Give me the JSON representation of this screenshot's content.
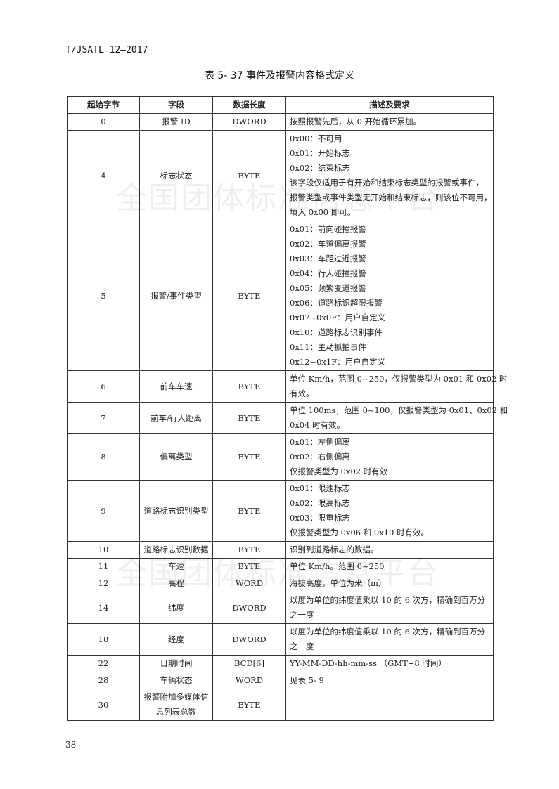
{
  "header": {
    "doc_id": "T/JSATL 12—2017"
  },
  "caption": "表 5- 37 事件及报警内容格式定义",
  "watermark": "全国团体标准信息平台",
  "table": {
    "columns": [
      "起始字节",
      "字段",
      "数据长度",
      "描述及要求"
    ],
    "rows": [
      {
        "start": "0",
        "field": [
          "报警 ID"
        ],
        "length": "DWORD",
        "desc": [
          "按照报警先后，从 0 开始循环累加。"
        ]
      },
      {
        "start": "4",
        "field": [
          "标志状态"
        ],
        "length": "BYTE",
        "desc": [
          "0x00：不可用",
          "0x01：开始标志",
          "0x02：结束标志",
          "该字段仅适用于有开始和结束标志类型的报警或事件，",
          "报警类型或事件类型无开始和结束标志，则该位不可用，",
          "填入 0x00 即可。"
        ]
      },
      {
        "start": "5",
        "field": [
          "报警/事件类型"
        ],
        "length": "BYTE",
        "desc": [
          "0x01：前向碰撞报警",
          "0x02：车道偏离报警",
          "0x03：车距过近报警",
          "0x04：行人碰撞报警",
          "0x05：频繁变道报警",
          "0x06：道路标识超限报警",
          "0x07~0x0F：用户自定义",
          "0x10：道路标志识别事件",
          "0x11：主动抓拍事件",
          "0x12~0x1F：用户自定义"
        ]
      },
      {
        "start": "6",
        "field": [
          "前车车速"
        ],
        "length": "BYTE",
        "desc": [
          "单位 Km/h，范围 0~250，仅报警类型为 0x01 和 0x02 时",
          "有效。"
        ]
      },
      {
        "start": "7",
        "field": [
          "前车/行人距离"
        ],
        "length": "BYTE",
        "desc": [
          "单位 100ms，范围 0~100，仅报警类型为 0x01、0x02 和",
          "0x04 时有效。"
        ]
      },
      {
        "start": "8",
        "field": [
          "偏离类型"
        ],
        "length": "BYTE",
        "desc": [
          "0x01：左侧偏离",
          "0x02：右侧偏离",
          "仅报警类型为 0x02 时有效"
        ]
      },
      {
        "start": "9",
        "field": [
          "道路标志识别类型"
        ],
        "length": "BYTE",
        "desc": [
          "0x01：限速标志",
          "0x02：限高标志",
          "0x03：限重标志",
          "仅报警类型为 0x06 和 0x10 时有效。"
        ]
      },
      {
        "start": "10",
        "field": [
          "道路标志识别数据"
        ],
        "length": "BYTE",
        "desc": [
          "识别到道路标志的数据。"
        ]
      },
      {
        "start": "11",
        "field": [
          "车速"
        ],
        "length": "BYTE",
        "desc": [
          "单位 Km/h。范围 0~250"
        ]
      },
      {
        "start": "12",
        "field": [
          "高程"
        ],
        "length": "WORD",
        "desc": [
          "海拔高度，单位为米（m）"
        ]
      },
      {
        "start": "14",
        "field": [
          "纬度"
        ],
        "length": "DWORD",
        "desc": [
          "以度为单位的纬度值乘以 10 的 6 次方，精确到百万分",
          "之一度"
        ]
      },
      {
        "start": "18",
        "field": [
          "经度"
        ],
        "length": "DWORD",
        "desc": [
          "以度为单位的纬度值乘以 10 的 6 次方，精确到百万分",
          "之一度"
        ]
      },
      {
        "start": "22",
        "field": [
          "日期时间"
        ],
        "length": "BCD[6]",
        "desc": [
          "YY-MM-DD-hh-mm-ss （GMT+8 时间）"
        ]
      },
      {
        "start": "28",
        "field": [
          "车辆状态"
        ],
        "length": "WORD",
        "desc": [
          "见表 5- 9"
        ]
      },
      {
        "start": "30",
        "field": [
          "报警附加多媒体信",
          "息列表总数"
        ],
        "length": "BYTE",
        "desc": []
      }
    ]
  },
  "footer": {
    "page_number": "38"
  }
}
